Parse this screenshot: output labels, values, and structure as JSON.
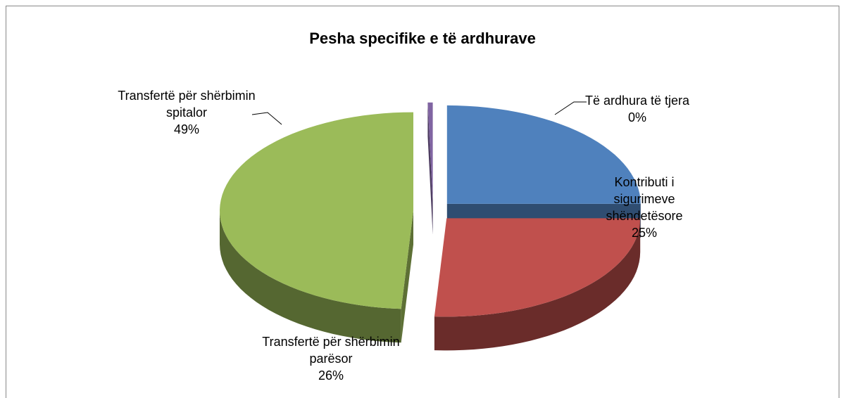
{
  "chart_data": {
    "type": "pie",
    "title": "Pesha specifike e të ardhurave",
    "categories": [
      "Kontributi i sigurimeve shëndetësore",
      "Transfertë për shërbimin parësor",
      "Transfertë për shërbimin spitalor",
      "Të ardhura të tjera"
    ],
    "values": [
      25,
      26,
      49,
      0
    ],
    "value_labels": [
      "25%",
      "26%",
      "49%",
      "0%"
    ],
    "colors": [
      "#4f81bd",
      "#c0504d",
      "#9bbb59",
      "#8064a2"
    ],
    "exploded": true,
    "three_d": true
  }
}
